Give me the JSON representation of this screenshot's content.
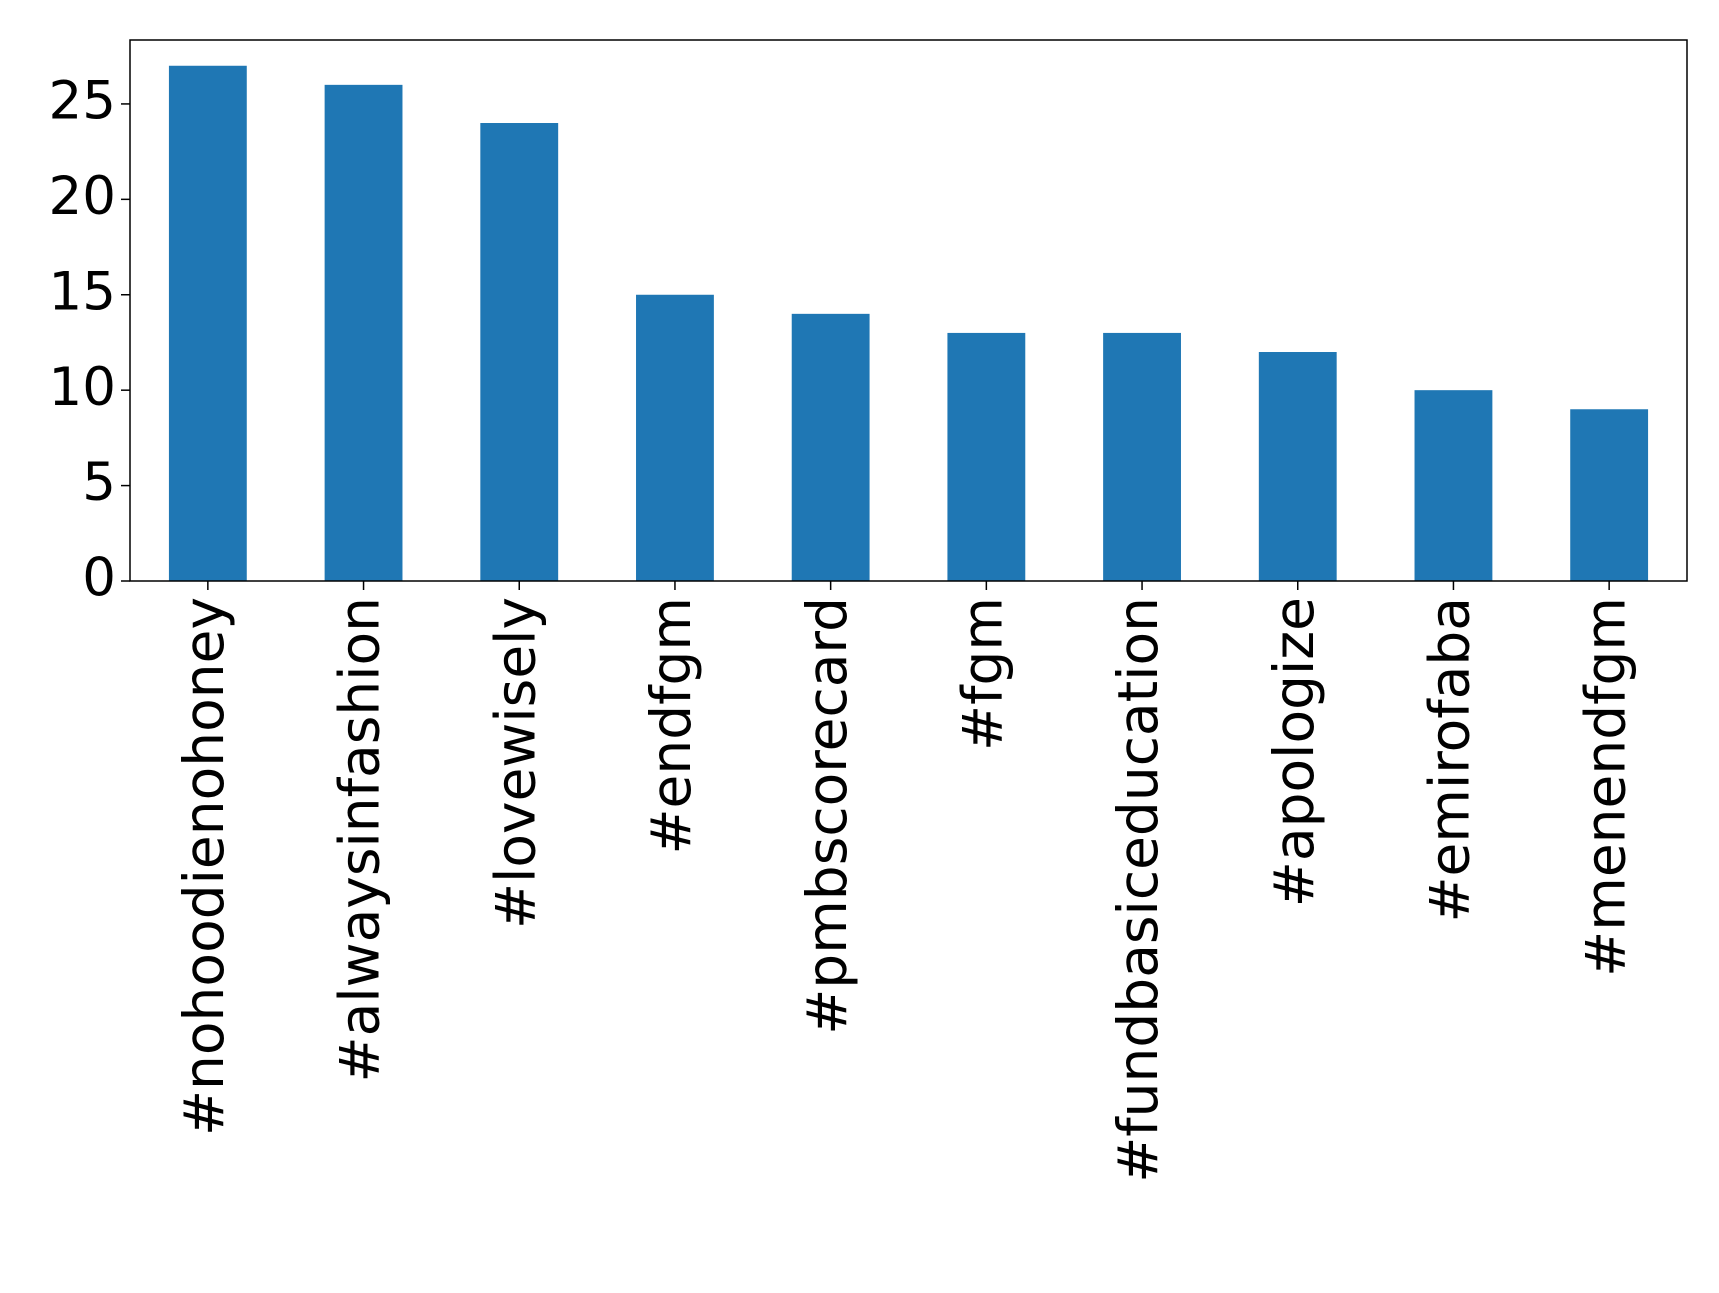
{
  "chart_data": {
    "type": "bar",
    "categories": [
      "#nohoodienohoney",
      "#alwaysinfashion",
      "#lovewisely",
      "#endfgm",
      "#pmbscorecard",
      "#fgm",
      "#fundbasiceducation",
      "#apologize",
      "#emirofaba",
      "#menendfgm"
    ],
    "values": [
      27,
      26,
      24,
      15,
      14,
      13,
      13,
      12,
      10,
      9
    ],
    "color": "#1f77b4",
    "ylim": [
      0,
      28.35
    ],
    "yticks": [
      0,
      5,
      10,
      15,
      20,
      25
    ],
    "grid": false
  }
}
